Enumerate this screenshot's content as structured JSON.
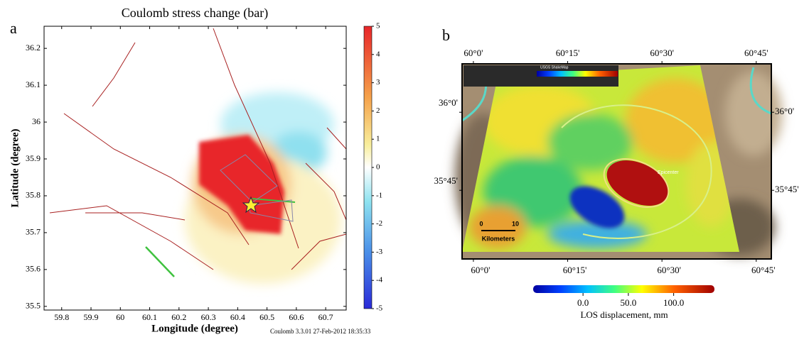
{
  "chart_data": [
    {
      "type": "heatmap",
      "panel_label": "a",
      "title": "Coulomb stress change (bar)",
      "xlabel": "Longitude (degree)",
      "ylabel": "Latitude  (degree)",
      "footnote": "Coulomb 3.3.01 27-Feb-2012 18:35:33",
      "xlim": [
        59.74,
        60.77
      ],
      "ylim": [
        35.49,
        36.26
      ],
      "xticks": [
        59.8,
        59.9,
        60,
        60.1,
        60.2,
        60.3,
        60.4,
        60.5,
        60.6,
        60.7
      ],
      "yticks": [
        35.5,
        35.6,
        35.7,
        35.8,
        35.9,
        36,
        36.1,
        36.2
      ],
      "clim": [
        -5,
        5
      ],
      "cticks": [
        -5,
        -4,
        -3,
        -2,
        -1,
        0,
        1,
        2,
        3,
        4,
        5
      ]
    },
    {
      "type": "map",
      "panel_label": "b",
      "xlim": [
        59.97,
        60.79
      ],
      "ylim": [
        35.53,
        36.155
      ],
      "xticks": [
        {
          "value": 60,
          "label": "60°0'"
        },
        {
          "value": 60.25,
          "label": "60°15'"
        },
        {
          "value": 60.5,
          "label": "60°30'"
        },
        {
          "value": 60.75,
          "label": "60°45'"
        }
      ],
      "yticks": [
        {
          "value": 35.75,
          "label": "35°45'"
        },
        {
          "value": 36,
          "label": "36°0'"
        }
      ],
      "clim": [
        -55,
        145
      ],
      "cticks": [
        {
          "value": 0,
          "label": "0.0"
        },
        {
          "value": 50,
          "label": "50.0"
        },
        {
          "value": 100,
          "label": "100.0"
        }
      ],
      "clabel": "LOS displacement, mm",
      "legend_title": "USGS ShakeMap",
      "epicenter_label": "Epicenter",
      "scale_labels": [
        "0",
        "10"
      ],
      "scale_unit": "Kilometers"
    }
  ]
}
